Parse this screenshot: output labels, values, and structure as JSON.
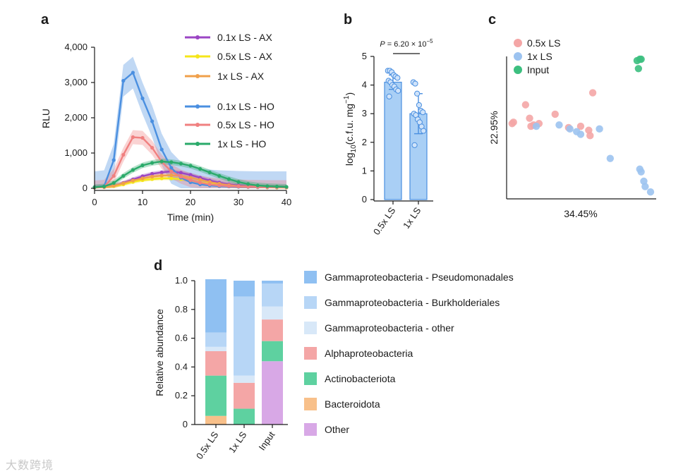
{
  "panels": {
    "a": {
      "letter": "a",
      "chart_data": {
        "type": "line",
        "xlabel": "Time (min)",
        "ylabel": "RLU",
        "xlim": [
          0,
          40
        ],
        "ylim": [
          0,
          4000
        ],
        "xticks": [
          "0",
          "10",
          "20",
          "30",
          "40"
        ],
        "yticks": [
          "0",
          "1,000",
          "2,000",
          "3,000",
          "4,000"
        ],
        "x": [
          0,
          2,
          4,
          6,
          8,
          10,
          12,
          14,
          16,
          18,
          20,
          22,
          24,
          26,
          28,
          30,
          32,
          34,
          36,
          38,
          40
        ],
        "series": [
          {
            "name": "0.1x LS - AX",
            "color": "#9b45c4",
            "band": 60,
            "values": [
              30,
              40,
              70,
              150,
              250,
              340,
              410,
              450,
              480,
              440,
              380,
              300,
              220,
              160,
              110,
              80,
              60,
              50,
              40,
              35,
              30
            ]
          },
          {
            "name": "0.5x LS - AX",
            "color": "#f5e61a",
            "band": 50,
            "values": [
              20,
              30,
              60,
              110,
              180,
              230,
              260,
              280,
              280,
              260,
              220,
              170,
              130,
              90,
              70,
              50,
              40,
              30,
              25,
              20,
              20
            ]
          },
          {
            "name": "1x LS - AX",
            "color": "#f0a04b",
            "band": 60,
            "values": [
              20,
              30,
              70,
              140,
              220,
              280,
              330,
              360,
              370,
              350,
              300,
              240,
              180,
              130,
              90,
              60,
              50,
              40,
              30,
              25,
              20
            ]
          },
          {
            "name": "0.1x LS - HO",
            "color": "#4a8fe0",
            "band": 450,
            "values": [
              30,
              60,
              800,
              3050,
              3280,
              2550,
              1900,
              1100,
              580,
              300,
              170,
              110,
              80,
              60,
              50,
              40,
              35,
              30,
              30,
              30,
              30
            ]
          },
          {
            "name": "0.5x LS - HO",
            "color": "#f08080",
            "band": 200,
            "values": [
              20,
              40,
              350,
              950,
              1450,
              1430,
              1150,
              750,
              480,
              330,
              230,
              160,
              110,
              80,
              60,
              50,
              40,
              35,
              30,
              30,
              30
            ]
          },
          {
            "name": "1x LS - HO",
            "color": "#2aaa6a",
            "band": 80,
            "values": [
              30,
              50,
              150,
              350,
              520,
              650,
              720,
              760,
              740,
              700,
              640,
              550,
              450,
              350,
              260,
              180,
              120,
              80,
              60,
              50,
              40
            ]
          }
        ],
        "legend": [
          "0.1x LS - AX",
          "0.5x LS - AX",
          "1x LS - AX",
          "0.1x LS - HO",
          "0.5x LS - HO",
          "1x LS - HO"
        ]
      }
    },
    "b": {
      "letter": "b",
      "chart_data": {
        "type": "bar",
        "categories": [
          "0.5x LS",
          "1x LS"
        ],
        "values": [
          4.1,
          3.0
        ],
        "errors": [
          0.25,
          0.7
        ],
        "points": [
          [
            4.5,
            4.5,
            4.45,
            4.35,
            4.3,
            4.25,
            4.15,
            4.1,
            4.0,
            3.95,
            3.85,
            3.8,
            3.6
          ],
          [
            4.1,
            4.05,
            3.7,
            3.3,
            3.1,
            3.05,
            3.0,
            2.95,
            2.8,
            2.7,
            2.55,
            2.4,
            1.9
          ]
        ],
        "ylabel_main": "log",
        "ylabel_sub": "10",
        "ylabel_rest": "(c.f.u. mg",
        "ylabel_sup": "−1",
        "ylabel_end": ")",
        "ylim": [
          0,
          5
        ],
        "yticks": [
          "0",
          "1",
          "2",
          "3",
          "4",
          "5"
        ],
        "annotation": "P = 6.20 × 10",
        "annotation_exp": "−5",
        "color_fill": "#a9cff5",
        "color_edge": "#4a8fe0"
      }
    },
    "c": {
      "letter": "c",
      "chart_data": {
        "type": "scatter",
        "xlabel": "34.45%",
        "ylabel": "22.95%",
        "legend": [
          "0.5x LS",
          "1x LS",
          "Input"
        ],
        "colors": [
          "#f4a6a6",
          "#9cc3f0",
          "#3cbf7f"
        ],
        "series": [
          {
            "name": "0.5x LS",
            "points": [
              [
                0.02,
                0.53
              ],
              [
                0.03,
                0.54
              ],
              [
                0.12,
                0.67
              ],
              [
                0.15,
                0.57
              ],
              [
                0.18,
                0.52
              ],
              [
                0.22,
                0.53
              ],
              [
                0.34,
                0.6
              ],
              [
                0.44,
                0.5
              ],
              [
                0.53,
                0.51
              ],
              [
                0.59,
                0.48
              ],
              [
                0.62,
                0.76
              ],
              [
                0.6,
                0.44
              ],
              [
                0.16,
                0.51
              ]
            ]
          },
          {
            "name": "1x LS",
            "points": [
              [
                0.2,
                0.51
              ],
              [
                0.37,
                0.52
              ],
              [
                0.45,
                0.49
              ],
              [
                0.5,
                0.47
              ],
              [
                0.53,
                0.45
              ],
              [
                0.67,
                0.49
              ],
              [
                0.75,
                0.27
              ],
              [
                0.97,
                0.19
              ],
              [
                0.98,
                0.17
              ],
              [
                1.0,
                0.1
              ],
              [
                1.01,
                0.06
              ],
              [
                1.05,
                0.02
              ]
            ]
          },
          {
            "name": "Input",
            "points": [
              [
                0.95,
                1.0
              ],
              [
                0.97,
                1.01
              ],
              [
                0.98,
                1.01
              ],
              [
                0.96,
                0.94
              ]
            ]
          }
        ]
      }
    },
    "d": {
      "letter": "d",
      "chart_data": {
        "type": "bar",
        "stacked": true,
        "categories": [
          "0.5x LS",
          "1x LS",
          "Input"
        ],
        "ylabel": "Relative abundance",
        "ylim": [
          0,
          1.0
        ],
        "yticks": [
          "0",
          "0.2",
          "0.4",
          "0.6",
          "0.8",
          "1.0"
        ],
        "series": [
          {
            "name": "Gammaproteobacteria - Pseudomonadales",
            "color": "#8fc0f2",
            "values": [
              0.37,
              0.11,
              0.02
            ]
          },
          {
            "name": "Gammaproteobacteria - Burkholderiales",
            "color": "#b7d6f6",
            "values": [
              0.1,
              0.55,
              0.16
            ]
          },
          {
            "name": "Gammaproteobacteria - other",
            "color": "#d8e8f8",
            "values": [
              0.03,
              0.05,
              0.09
            ]
          },
          {
            "name": "Alphaproteobacteria",
            "color": "#f4a6a6",
            "values": [
              0.17,
              0.18,
              0.15
            ]
          },
          {
            "name": "Actinobacteriota",
            "color": "#5ed1a0",
            "values": [
              0.28,
              0.11,
              0.14
            ]
          },
          {
            "name": "Bacteroidota",
            "color": "#f8c08a",
            "values": [
              0.06,
              0.0,
              0.0
            ]
          },
          {
            "name": "Other",
            "color": "#d8a8e6",
            "values": [
              0.0,
              0.0,
              0.44
            ]
          }
        ]
      }
    }
  },
  "watermark": "大数跨境"
}
